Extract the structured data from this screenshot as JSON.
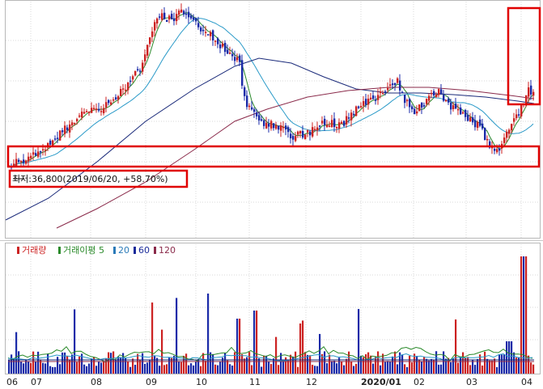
{
  "chart_data": {
    "type": "candlestick",
    "months": [
      "06",
      "07",
      "08",
      "09",
      "10",
      "11",
      "12",
      "2020/01",
      "02",
      "03",
      "04"
    ],
    "annotation": "최저:36,800(2019/06/20, +58.70%)",
    "legend": [
      {
        "label": "거래량",
        "color": "#cc2222"
      },
      {
        "label": "거래이평 5",
        "color": "#2a8a2a"
      },
      {
        "label": "20",
        "color": "#2a7ab8"
      },
      {
        "label": "60",
        "color": "#1a2a9a"
      },
      {
        "label": "120",
        "color": "#8a2a4a"
      }
    ],
    "colors": {
      "up": "#cc2222",
      "down": "#1a2aa8",
      "ma5": "#2a8a2a",
      "ma20": "#2a9ac8",
      "ma60": "#1a2a7a",
      "ma120": "#8a2a4a",
      "highlight": "#e00000",
      "grid": "#d8d8d8"
    }
  }
}
